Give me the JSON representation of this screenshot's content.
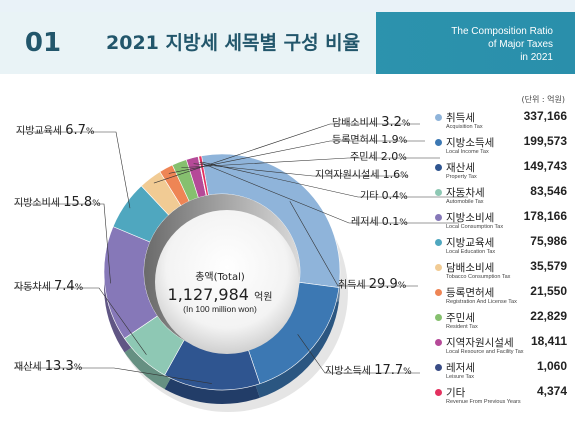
{
  "header": {
    "number": "01",
    "title": "2021 지방세 세목별 구성 비율",
    "subtitle_en": [
      "The Composition Ratio",
      "of Major Taxes",
      "in 2021"
    ]
  },
  "unit_label": "(단위 : 억원)",
  "center": {
    "label": "총액(Total)",
    "value": "1,127,984",
    "value_unit": "억원",
    "value_en": "(In 100 million won)"
  },
  "colors": {
    "header": "#2f9ab1",
    "acquisition": "#8fb4da",
    "local_income": "#3c78b3",
    "property": "#2f5590",
    "automobile": "#8ec8b4",
    "local_consumption": "#8678b8",
    "local_education": "#4fa7bf",
    "tobacco": "#f1cb94",
    "registration": "#ee8555",
    "resident": "#86c06f",
    "regional_resource": "#b54a98",
    "leisure": "#3a4d86",
    "previous_years": "#e3315f"
  },
  "chart_data": {
    "type": "pie",
    "title": "2021 지방세 세목별 구성 비율",
    "unit": "억원",
    "total": 1127984,
    "series": [
      {
        "key": "acquisition",
        "label": "취득세",
        "percent_label": "29.9",
        "percent": 29.9,
        "value": 337166,
        "value_label": "337,166",
        "en": "Acquisition Tax",
        "color": "#8fb4da"
      },
      {
        "key": "local_income",
        "label": "지방소득세",
        "percent_label": "17.7",
        "percent": 17.7,
        "value": 199573,
        "value_label": "199,573",
        "en": "Local Income Tax",
        "color": "#3c78b3"
      },
      {
        "key": "property",
        "label": "재산세",
        "percent_label": "13.3",
        "percent": 13.3,
        "value": 149743,
        "value_label": "149,743",
        "en": "Property Tax",
        "color": "#2f5590"
      },
      {
        "key": "automobile",
        "label": "자동차세",
        "percent_label": "7.4",
        "percent": 7.4,
        "value": 83546,
        "value_label": "83,546",
        "en": "Automobile Tax",
        "color": "#8ec8b4"
      },
      {
        "key": "local_consumption",
        "label": "지방소비세",
        "percent_label": "15.8",
        "percent": 15.8,
        "value": 178166,
        "value_label": "178,166",
        "en": "Local Consumption Tax",
        "color": "#8678b8"
      },
      {
        "key": "local_education",
        "label": "지방교육세",
        "percent_label": "6.7",
        "percent": 6.7,
        "value": 75986,
        "value_label": "75,986",
        "en": "Local Education Tax",
        "color": "#4fa7bf"
      },
      {
        "key": "tobacco",
        "label": "담배소비세",
        "percent_label": "3.2",
        "percent": 3.2,
        "value": 35579,
        "value_label": "35,579",
        "en": "Tobacco Consumption Tax",
        "color": "#f1cb94"
      },
      {
        "key": "registration",
        "label": "등록면허세",
        "percent_label": "1.9",
        "percent": 1.9,
        "value": 21550,
        "value_label": "21,550",
        "en": "Registration And License Tax",
        "color": "#ee8555"
      },
      {
        "key": "resident",
        "label": "주민세",
        "percent_label": "2.0",
        "percent": 2.0,
        "value": 22829,
        "value_label": "22,829",
        "en": "Resident Tax",
        "color": "#86c06f"
      },
      {
        "key": "regional_resource",
        "label": "지역자원시설세",
        "percent_label": "1.6",
        "percent": 1.6,
        "value": 18411,
        "value_label": "18,411",
        "en": "Local Resource and Facility Tax",
        "color": "#b54a98"
      },
      {
        "key": "leisure",
        "label": "레저세",
        "percent_label": "0.1",
        "percent": 0.1,
        "value": 1060,
        "value_label": "1,060",
        "en": "Leisure Tax",
        "color": "#3a4d86"
      },
      {
        "key": "previous_years",
        "label": "기타",
        "percent_label": "0.4",
        "percent": 0.4,
        "value": 4374,
        "value_label": "4,374",
        "en": "Revenue From Previous Years",
        "color": "#e3315f"
      }
    ],
    "percent_suffix": "%",
    "legend_position": "right"
  }
}
